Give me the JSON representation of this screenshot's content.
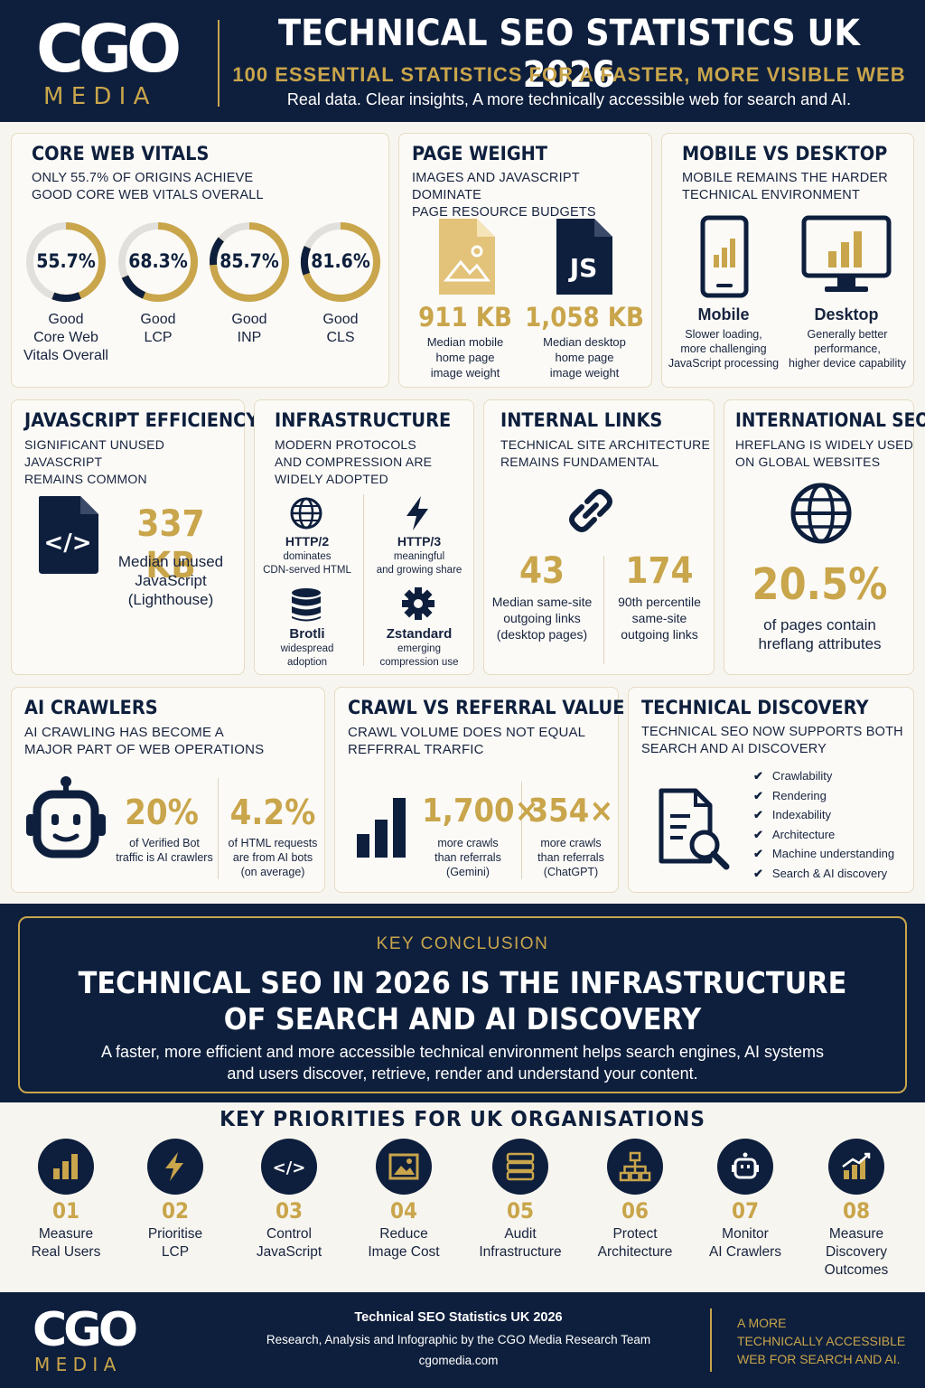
{
  "header": {
    "logo": "CGO",
    "logo_sub": "M E D I A",
    "title": "TECHNICAL SEO STATISTICS UK 2026",
    "subtitle": "100 ESSENTIAL STATISTICS FOR A FASTER, MORE VISIBLE WEB",
    "tagline": "Real data. Clear insights, A more technically accessible web for search and AI."
  },
  "core_web_vitals": {
    "title": "CORE WEB VITALS",
    "subtitle_1": "ONLY 55.7% OF ORIGINS ACHIEVE",
    "subtitle_2": "GOOD CORE WEB VITALS OVERALL",
    "rings": [
      {
        "value": "55.7%",
        "pct": 55.7,
        "label_1": "Good",
        "label_2": "Core Web",
        "label_3": "Vitals Overall"
      },
      {
        "value": "68.3%",
        "pct": 68.3,
        "label_1": "Good",
        "label_2": "LCP",
        "label_3": ""
      },
      {
        "value": "85.7%",
        "pct": 85.7,
        "label_1": "Good",
        "label_2": "INP",
        "label_3": ""
      },
      {
        "value": "81.6%",
        "pct": 81.6,
        "label_1": "Good",
        "label_2": "CLS",
        "label_3": ""
      }
    ]
  },
  "page_weight": {
    "title": "PAGE WEIGHT",
    "subtitle_1": "IMAGES AND JAVASCRIPT DOMINATE",
    "subtitle_2": "PAGE RESOURCE BUDGETS",
    "js_icon_text": "JS",
    "stats": [
      {
        "value": "911 KB",
        "cap_1": "Median mobile",
        "cap_2": "home page",
        "cap_3": "image weight"
      },
      {
        "value": "1,058 KB",
        "cap_1": "Median desktop",
        "cap_2": "home page",
        "cap_3": "image weight"
      }
    ]
  },
  "mobile_desktop": {
    "title": "MOBILE VS DESKTOP",
    "subtitle_1": "MOBILE REMAINS THE HARDER",
    "subtitle_2": "TECHNICAL ENVIRONMENT",
    "items": [
      {
        "label": "Mobile",
        "cap_1": "Slower loading,",
        "cap_2": "more challenging",
        "cap_3": "JavaScript processing"
      },
      {
        "label": "Desktop",
        "cap_1": "Generally better",
        "cap_2": "performance,",
        "cap_3": "higher device capability"
      }
    ]
  },
  "js_efficiency": {
    "title": "JAVASCRIPT EFFICIENCY",
    "subtitle_1": "SIGNIFICANT UNUSED JAVASCRIPT",
    "subtitle_2": "REMAINS COMMON",
    "value": "337 KB",
    "cap_1": "Median unused",
    "cap_2": "JavaScript",
    "cap_3": "(Lighthouse)"
  },
  "infrastructure": {
    "title": "INFRASTRUCTURE",
    "subtitle_1": "MODERN PROTOCOLS",
    "subtitle_2": "AND COMPRESSION ARE",
    "subtitle_3": "WIDELY ADOPTED",
    "items": [
      {
        "label": "HTTP/2",
        "cap_1": "dominates",
        "cap_2": "CDN-served HTML"
      },
      {
        "label": "HTTP/3",
        "cap_1": "meaningful",
        "cap_2": "and growing share"
      },
      {
        "label": "Brotli",
        "cap_1": "widespread",
        "cap_2": "adoption"
      },
      {
        "label": "Zstandard",
        "cap_1": "emerging",
        "cap_2": "compression use"
      }
    ]
  },
  "internal_links": {
    "title": "INTERNAL LINKS",
    "subtitle_1": "TECHNICAL SITE ARCHITECTURE",
    "subtitle_2": "REMAINS FUNDAMENTAL",
    "stats": [
      {
        "value": "43",
        "cap_1": "Median same-site",
        "cap_2": "outgoing links",
        "cap_3": "(desktop pages)"
      },
      {
        "value": "174",
        "cap_1": "90th percentile",
        "cap_2": "same-site",
        "cap_3": "outgoing links"
      }
    ]
  },
  "international": {
    "title": "INTERNATIONAL SEO",
    "subtitle_1": "HREFLANG IS WIDELY USED",
    "subtitle_2": "ON GLOBAL WEBSITES",
    "value": "20.5%",
    "cap_1": "of pages contain",
    "cap_2": "hreflang attributes"
  },
  "ai_crawlers": {
    "title": "AI CRAWLERS",
    "subtitle_1": "AI CRAWLING HAS BECOME A",
    "subtitle_2": "MAJOR PART OF WEB OPERATIONS",
    "stats": [
      {
        "value": "20%",
        "cap_1": "of Verified Bot",
        "cap_2": "traffic is AI crawlers",
        "cap_3": ""
      },
      {
        "value": "4.2%",
        "cap_1": "of HTML requests",
        "cap_2": "are from AI bots",
        "cap_3": "(on average)"
      }
    ]
  },
  "crawl_referral": {
    "title": "CRAWL VS REFERRAL VALUE",
    "subtitle_1": "CRAWL VOLUME DOES NOT EQUAL",
    "subtitle_2": "REFFRRAL TRARFIC",
    "stats": [
      {
        "value": "1,700×",
        "cap_1": "more crawls",
        "cap_2": "than referrals",
        "cap_3": "(Gemini)"
      },
      {
        "value": "354×",
        "cap_1": "more crawls",
        "cap_2": "than referrals",
        "cap_3": "(ChatGPT)"
      }
    ]
  },
  "tech_discovery": {
    "title": "TECHNICAL DISCOVERY",
    "subtitle_1": "TECHNICAL SEO NOW SUPPORTS BOTH",
    "subtitle_2": "SEARCH AND AI DISCOVERY",
    "checks": [
      "Crawlability",
      "Rendering",
      "Indexability",
      "Architecture",
      "Machine understanding",
      "Search & AI discovery"
    ]
  },
  "conclusion": {
    "kicker": "KEY CONCLUSION",
    "title_1": "TECHNICAL SEO IN 2026 IS THE INFRASTRUCTURE",
    "title_2": "OF SEARCH AND AI DISCOVERY",
    "text_1": "A faster, more efficient and more accessible technical environment helps search engines, AI systems",
    "text_2": "and users discover, retrieve, render and understand your content."
  },
  "priorities": {
    "title": "KEY PRIORITIES FOR UK ORGANISATIONS",
    "items": [
      {
        "num": "01",
        "label_1": "Measure",
        "label_2": "Real Users",
        "label_3": "",
        "icon": "bar-chart-icon"
      },
      {
        "num": "02",
        "label_1": "Prioritise",
        "label_2": "LCP",
        "label_3": "",
        "icon": "lightning-icon"
      },
      {
        "num": "03",
        "label_1": "Control",
        "label_2": "JavaScript",
        "label_3": "",
        "icon": "code-icon"
      },
      {
        "num": "04",
        "label_1": "Reduce",
        "label_2": "Image Cost",
        "label_3": "",
        "icon": "image-icon"
      },
      {
        "num": "05",
        "label_1": "Audit",
        "label_2": "Infrastructure",
        "label_3": "",
        "icon": "server-icon"
      },
      {
        "num": "06",
        "label_1": "Protect",
        "label_2": "Architecture",
        "label_3": "",
        "icon": "sitemap-icon"
      },
      {
        "num": "07",
        "label_1": "Monitor",
        "label_2": "AI Crawlers",
        "label_3": "",
        "icon": "robot-icon"
      },
      {
        "num": "08",
        "label_1": "Measure",
        "label_2": "Discovery",
        "label_3": "Outcomes",
        "icon": "growth-chart-icon"
      }
    ]
  },
  "footer": {
    "logo": "CGO",
    "logo_sub": "M E D I A",
    "title": "Technical SEO Statistics UK 2026",
    "credit": "Research, Analysis and Infographic by the CGO Media Research Team",
    "url": "cgomedia.com",
    "tag_1": "A MORE",
    "tag_2": "TECHNICALLY ACCESSIBLE",
    "tag_3": "WEB FOR SEARCH AND AI."
  },
  "colors": {
    "navy": "#0e1f3d",
    "gold": "#c9a54b",
    "ring_track": "#e2e0dc"
  }
}
